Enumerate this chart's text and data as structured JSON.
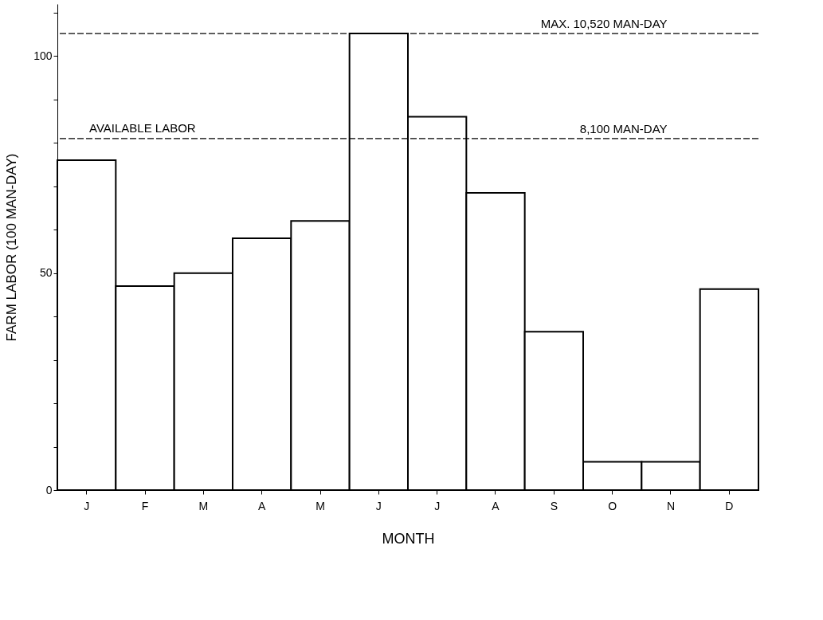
{
  "chart_data": {
    "type": "bar",
    "xlabel": "MONTH",
    "ylabel": "FARM LABOR  (100 MAN-DAY)",
    "categories": [
      "J",
      "F",
      "M",
      "A",
      "M",
      "J",
      "J",
      "A",
      "S",
      "O",
      "N",
      "D"
    ],
    "values": [
      76,
      47,
      50,
      58,
      62,
      105.2,
      86,
      68.5,
      36.5,
      6.5,
      6.5,
      46.3
    ],
    "color": "#ffffff",
    "ylim": [
      0,
      112
    ],
    "yticks": [
      0,
      {
        "value": 10,
        "label": null
      },
      {
        "value": 20,
        "label": null
      },
      {
        "value": 30,
        "label": null
      },
      {
        "value": 40,
        "label": null
      },
      50,
      {
        "value": 60,
        "label": null
      },
      {
        "value": 70,
        "label": null
      },
      {
        "value": 80,
        "label": null
      },
      {
        "value": 90,
        "label": null
      },
      100,
      {
        "value": 110,
        "label": null
      }
    ],
    "grid": false,
    "ref_lines": [
      {
        "axis": "y",
        "value": 81,
        "label": "8,100 MAN-DAY",
        "color": "#000000",
        "line_style": "dashed"
      },
      {
        "axis": "y",
        "value": 105.2,
        "label": "MAX. 10,520 MAN-DAY",
        "color": "#000000",
        "line_style": "dashed"
      }
    ],
    "annotations": [
      {
        "text": "AVAILABLE LABOR",
        "y": 81
      }
    ]
  }
}
